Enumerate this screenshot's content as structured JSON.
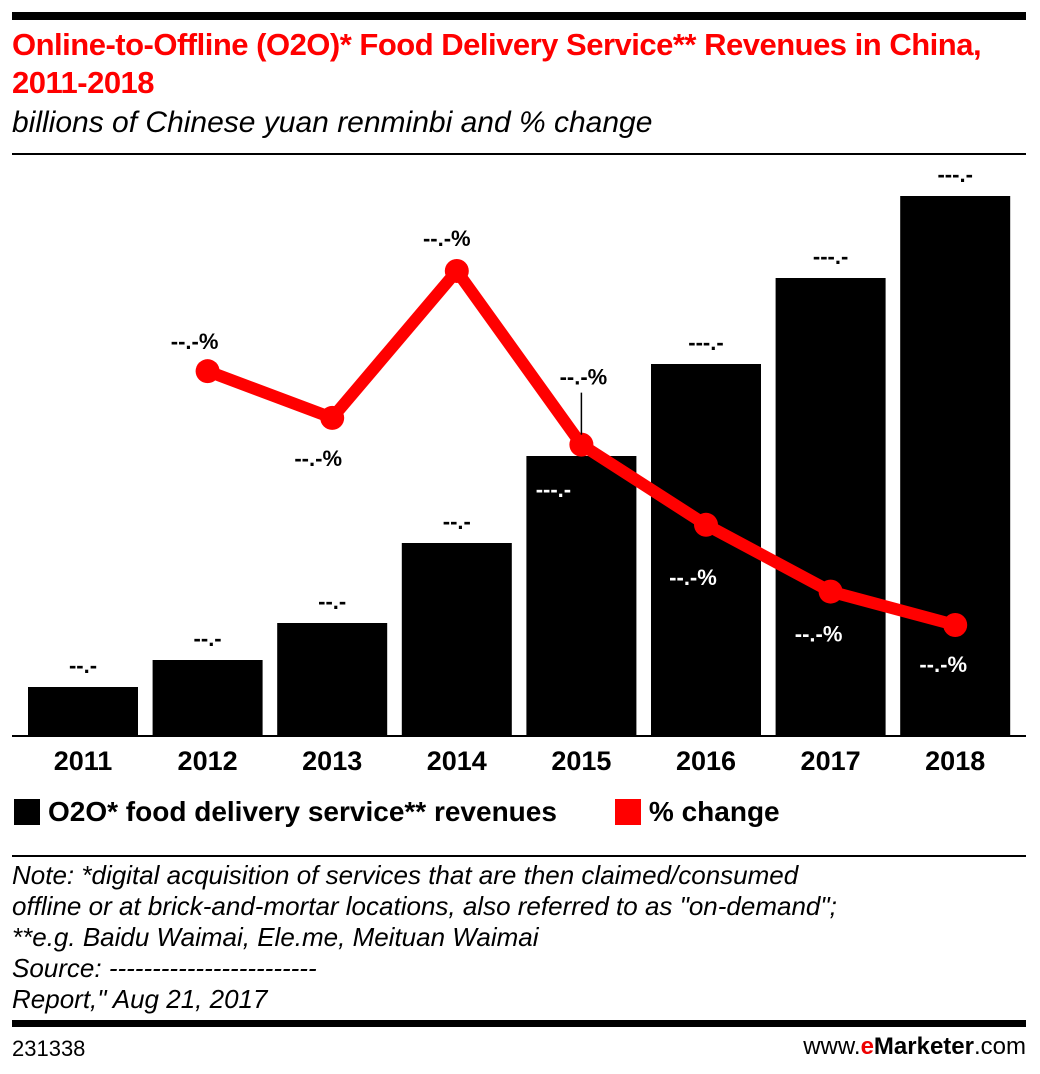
{
  "header": {
    "title": "Online-to-Offline (O2O)* Food Delivery Service** Revenues in China, 2011-2018",
    "subtitle": "billions of Chinese yuan renminbi and % change"
  },
  "chart_data": {
    "type": "bar+line",
    "title": "Online-to-Offline (O2O)* Food Delivery Service** Revenues in China, 2011-2018",
    "subtitle": "billions of Chinese yuan renminbi and % change",
    "categories": [
      "2011",
      "2012",
      "2013",
      "2014",
      "2015",
      "2016",
      "2017",
      "2018"
    ],
    "series": [
      {
        "name": "O2O* food delivery service** revenues",
        "type": "bar",
        "color": "#000000",
        "values": [
          24,
          37.5,
          56,
          96,
          139.5,
          185.5,
          228.5,
          269.5
        ],
        "labels": [
          "--.-",
          "--.-",
          "--.-",
          "--.-",
          "---.-",
          "---.-",
          "---.-",
          "---.-"
        ]
      },
      {
        "name": "% change",
        "type": "line",
        "color": "#ff0000",
        "values": [
          null,
          56,
          49,
          71,
          45,
          33,
          23,
          18
        ],
        "labels": [
          "",
          "--.-%",
          "--.-%",
          "--.-%",
          "--.-%",
          "--.-%",
          "--.-%",
          "--.-%"
        ]
      }
    ],
    "grid": false,
    "legend": "bottom-left"
  },
  "legend": {
    "bar": "O2O* food delivery service** revenues",
    "line": "% change"
  },
  "note": [
    "Note: *digital acquisition of services that are then claimed/consumed",
    "offline or at brick-and-mortar locations, also referred to as \"on-demand\";",
    "**e.g. Baidu Waimai, Ele.me, Meituan Waimai",
    "Source: ------------------------",
    "Report,\" Aug 21, 2017"
  ],
  "footer": {
    "id": "231338",
    "brand_pre": "www.",
    "brand_e": "e",
    "brand_main": "Marketer",
    "brand_post": ".com"
  }
}
